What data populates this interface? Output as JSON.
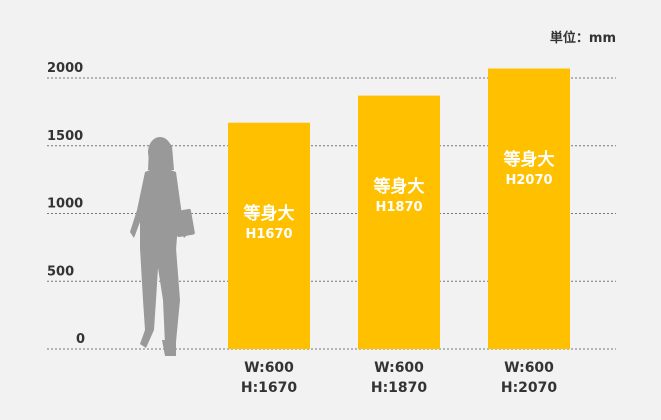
{
  "unit_label": "単位：mm",
  "chart_data": {
    "type": "bar",
    "ylim": [
      0,
      2000
    ],
    "yticks": [
      0,
      500,
      1000,
      1500,
      2000
    ],
    "grid": true,
    "bar_color": "#ffc000",
    "categories": [
      "W:600\nH:1670",
      "W:600\nH:1870",
      "W:600\nH:2070"
    ],
    "values": [
      1670,
      1870,
      2070
    ],
    "bar_labels": [
      {
        "title": "等身大",
        "sub": "H1670"
      },
      {
        "title": "等身大",
        "sub": "H1870"
      },
      {
        "title": "等身大",
        "sub": "H2070"
      }
    ]
  },
  "figure": {
    "icon": "woman-silhouette-icon",
    "color": "#999999"
  }
}
